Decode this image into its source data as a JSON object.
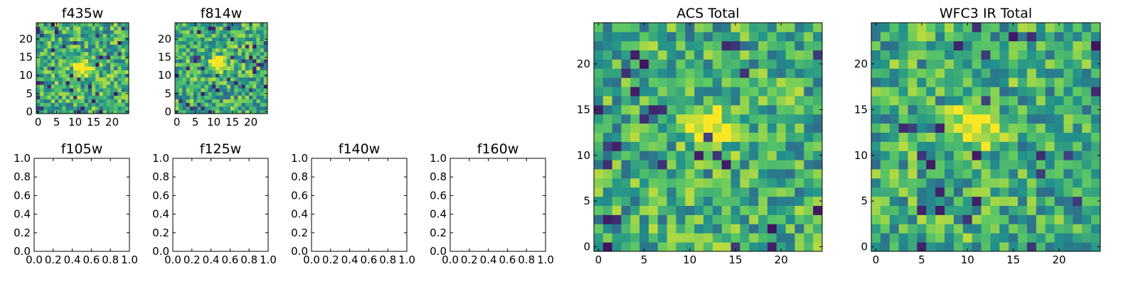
{
  "figure": {
    "colormap": "viridis",
    "colors": [
      "#440154",
      "#3b528b",
      "#21918c",
      "#5ec962",
      "#fde725"
    ]
  },
  "chart_data": [
    {
      "id": "f435w",
      "type": "heatmap",
      "title": "f435w",
      "grid_size": 25,
      "xlim": [
        -0.5,
        24.5
      ],
      "ylim": [
        -0.5,
        24.5
      ],
      "xticks": [
        0,
        5,
        10,
        15,
        20
      ],
      "yticks": [
        0,
        5,
        10,
        15,
        20
      ],
      "source_peak": {
        "x": 12,
        "y": 12
      },
      "seed": 11
    },
    {
      "id": "f814w",
      "type": "heatmap",
      "title": "f814w",
      "grid_size": 25,
      "xlim": [
        -0.5,
        24.5
      ],
      "ylim": [
        -0.5,
        24.5
      ],
      "xticks": [
        0,
        5,
        10,
        15,
        20
      ],
      "yticks": [
        0,
        5,
        10,
        15,
        20
      ],
      "source_peak": {
        "x": 11,
        "y": 13
      },
      "seed": 23
    },
    {
      "id": "f105w",
      "type": "heatmap",
      "title": "f105w",
      "empty": true,
      "xlim": [
        0,
        1
      ],
      "ylim": [
        0,
        1
      ],
      "xticks": [
        "0.0",
        "0.2",
        "0.4",
        "0.6",
        "0.8",
        "1.0"
      ],
      "yticks": [
        "0.0",
        "0.2",
        "0.4",
        "0.6",
        "0.8",
        "1.0"
      ]
    },
    {
      "id": "f125w",
      "type": "heatmap",
      "title": "f125w",
      "empty": true,
      "xlim": [
        0,
        1
      ],
      "ylim": [
        0,
        1
      ],
      "xticks": [
        "0.0",
        "0.2",
        "0.4",
        "0.6",
        "0.8",
        "1.0"
      ],
      "yticks": [
        "0.0",
        "0.2",
        "0.4",
        "0.6",
        "0.8",
        "1.0"
      ]
    },
    {
      "id": "f140w",
      "type": "heatmap",
      "title": "f140w",
      "empty": true,
      "xlim": [
        0,
        1
      ],
      "ylim": [
        0,
        1
      ],
      "xticks": [
        "0.0",
        "0.2",
        "0.4",
        "0.6",
        "0.8",
        "1.0"
      ],
      "yticks": [
        "0.0",
        "0.2",
        "0.4",
        "0.6",
        "0.8",
        "1.0"
      ]
    },
    {
      "id": "f160w",
      "type": "heatmap",
      "title": "f160w",
      "empty": true,
      "xlim": [
        0,
        1
      ],
      "ylim": [
        0,
        1
      ],
      "xticks": [
        "0.0",
        "0.2",
        "0.4",
        "0.6",
        "0.8",
        "1.0"
      ],
      "yticks": [
        "0.0",
        "0.2",
        "0.4",
        "0.6",
        "0.8",
        "1.0"
      ]
    },
    {
      "id": "acs_total",
      "type": "heatmap",
      "title": "ACS Total",
      "grid_size": 25,
      "xlim": [
        -0.5,
        24.5
      ],
      "ylim": [
        -0.5,
        24.5
      ],
      "xticks": [
        0,
        5,
        10,
        15,
        20
      ],
      "yticks": [
        0,
        5,
        10,
        15,
        20
      ],
      "source_peak": {
        "x": 12,
        "y": 13
      },
      "seed": 37
    },
    {
      "id": "wfc3_ir_total",
      "type": "heatmap",
      "title": "WFC3 IR Total",
      "grid_size": 25,
      "xlim": [
        -0.5,
        24.5
      ],
      "ylim": [
        -0.5,
        24.5
      ],
      "xticks": [
        0,
        5,
        10,
        15,
        20
      ],
      "yticks": [
        0,
        5,
        10,
        15,
        20
      ],
      "source_peak": {
        "x": 11,
        "y": 13
      },
      "seed": 53
    }
  ]
}
